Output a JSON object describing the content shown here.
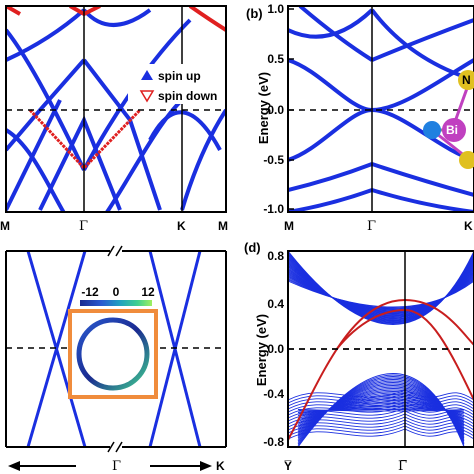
{
  "panels": {
    "a": {
      "x_ticks": [
        "M",
        "Γ",
        "K",
        "M"
      ],
      "legend": [
        {
          "label": "spin up",
          "marker": "filled-triangle-up",
          "color": "#1a2fe0"
        },
        {
          "label": "spin down",
          "marker": "open-triangle-down",
          "color": "#e02020"
        }
      ]
    },
    "b": {
      "tag": "(b)",
      "ylabel": "Energy (eV)",
      "y_ticks": [
        "1.0",
        "0.5",
        "0.0",
        "-0.5",
        "-1.0"
      ],
      "x_ticks": [
        "M",
        "Γ",
        "K"
      ],
      "atom_labels": [
        "Bi",
        "N"
      ]
    },
    "c": {
      "x_labels": [
        "←",
        "Γ",
        "→",
        "K"
      ],
      "colorbar_ticks": [
        "-12",
        "0",
        "12"
      ]
    },
    "d": {
      "tag": "(d)",
      "ylabel": "Energy (eV)",
      "y_ticks": [
        "0.8",
        "0.4",
        "0.0",
        "-0.4",
        "-0.8"
      ],
      "x_ticks": [
        "Y̅",
        "Γ̅"
      ]
    }
  },
  "colors": {
    "band": "#1a2fe0",
    "spin_down": "#e02020",
    "edge_state": "#c81e1e",
    "inset_frame": "#f08c3c",
    "bi_atom": "#c040c0",
    "n_atom": "#e0c020",
    "side_atom": "#2080e0"
  },
  "chart_data": [
    {
      "panel": "a",
      "type": "line",
      "title": "",
      "xlabel": "",
      "ylabel": "",
      "x_categories": [
        "M",
        "Γ",
        "K",
        "M"
      ],
      "series": [
        {
          "name": "spin up"
        },
        {
          "name": "spin down"
        }
      ],
      "reference_line": 0.0
    },
    {
      "panel": "b",
      "type": "line",
      "xlabel": "",
      "ylabel": "Energy (eV)",
      "ylim": [
        -1.0,
        1.0
      ],
      "x_categories": [
        "M",
        "Γ",
        "K"
      ],
      "reference_line": 0.0
    },
    {
      "panel": "c",
      "type": "line",
      "colorbar": {
        "min": -12,
        "max": 12,
        "ticks": [
          -12,
          0,
          12
        ]
      }
    },
    {
      "panel": "d",
      "type": "line",
      "ylabel": "Energy (eV)",
      "ylim": [
        -0.8,
        0.8
      ],
      "x_categories": [
        "Y̅",
        "Γ̅"
      ],
      "reference_line": 0.0
    }
  ]
}
